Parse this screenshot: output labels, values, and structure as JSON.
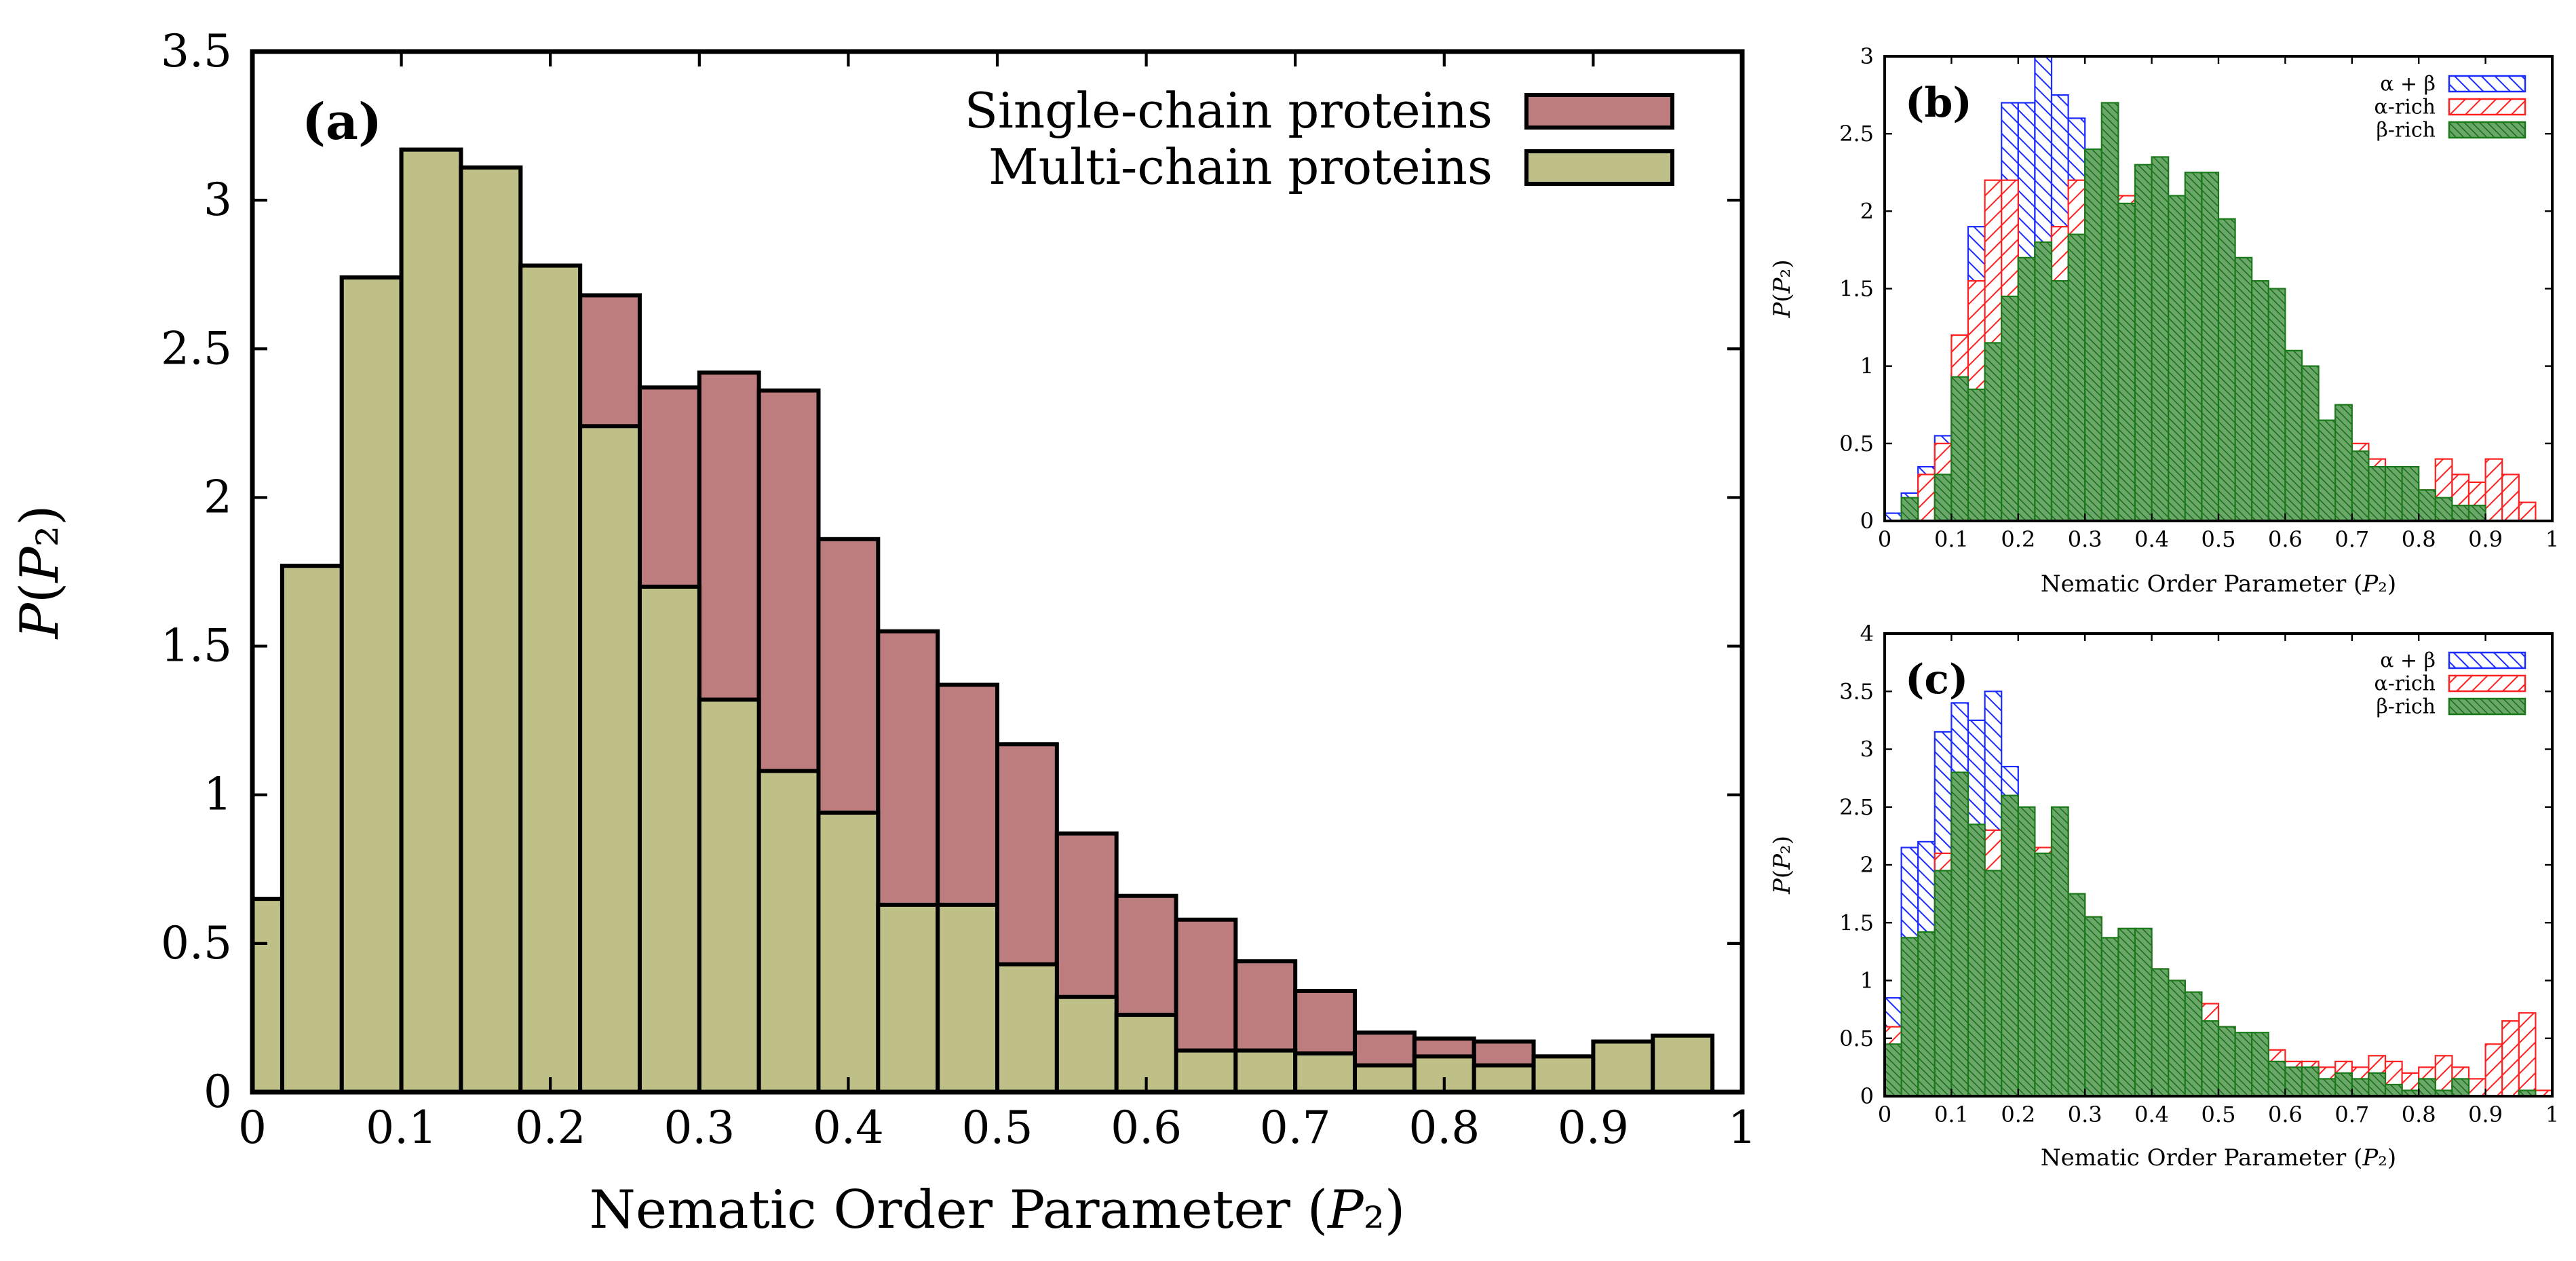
{
  "colors": {
    "single": "#bd7c7d",
    "multi": "#bfbf88",
    "alpha_beta": "#1a2cff",
    "alpha_rich": "#ff2020",
    "beta_rich": "#1a7a1a"
  },
  "chart_data": [
    {
      "panel": "a",
      "type": "bar",
      "title": "",
      "panel_label": "(a)",
      "xlabel": "Nematic Order Parameter (P₂)",
      "ylabel": "P(P₂)",
      "xlim": [
        0,
        1
      ],
      "ylim": [
        0,
        3.5
      ],
      "x_ticks": [
        "0",
        "0.1",
        "0.2",
        "0.3",
        "0.4",
        "0.5",
        "0.6",
        "0.7",
        "0.8",
        "0.9",
        "1"
      ],
      "y_ticks": [
        "0",
        "0.5",
        "1",
        "1.5",
        "2",
        "2.5",
        "3",
        "3.5"
      ],
      "bin_width": 0.04,
      "legend_position": "top-right",
      "series": [
        {
          "name": "Single-chain proteins",
          "color_key": "single",
          "x": [
            0.0,
            0.02,
            0.06,
            0.1,
            0.14,
            0.18,
            0.22,
            0.26,
            0.3,
            0.34,
            0.38,
            0.42,
            0.46,
            0.5,
            0.54,
            0.58,
            0.62,
            0.66,
            0.7,
            0.74,
            0.78,
            0.82,
            0.86,
            0.9,
            0.94
          ],
          "values": [
            0.65,
            1.77,
            2.74,
            3.17,
            3.11,
            2.78,
            2.68,
            2.37,
            2.42,
            2.36,
            1.86,
            1.55,
            1.37,
            1.17,
            0.87,
            0.66,
            0.58,
            0.44,
            0.34,
            0.2,
            0.18,
            0.17,
            0.12,
            0.11,
            0.1
          ]
        },
        {
          "name": "Multi-chain proteins",
          "color_key": "multi",
          "x": [
            0.0,
            0.02,
            0.06,
            0.1,
            0.14,
            0.18,
            0.22,
            0.26,
            0.3,
            0.34,
            0.38,
            0.42,
            0.46,
            0.5,
            0.54,
            0.58,
            0.62,
            0.66,
            0.7,
            0.74,
            0.78,
            0.82,
            0.86,
            0.9,
            0.94
          ],
          "values": [
            0.65,
            1.77,
            2.74,
            3.17,
            3.11,
            2.78,
            2.24,
            1.7,
            1.32,
            1.08,
            0.94,
            0.63,
            0.63,
            0.43,
            0.32,
            0.26,
            0.14,
            0.14,
            0.13,
            0.09,
            0.12,
            0.09,
            0.12,
            0.17,
            0.19
          ]
        }
      ]
    },
    {
      "panel": "b",
      "type": "bar",
      "title": "",
      "panel_label": "(b)",
      "xlabel": "Nematic Order Parameter (P₂)",
      "ylabel": "P(P₂)",
      "xlim": [
        0,
        1
      ],
      "ylim": [
        0,
        3
      ],
      "x_ticks": [
        "0",
        "0.1",
        "0.2",
        "0.3",
        "0.4",
        "0.5",
        "0.6",
        "0.7",
        "0.8",
        "0.9",
        "1"
      ],
      "y_ticks": [
        "0",
        "0.5",
        "1",
        "1.5",
        "2",
        "2.5",
        "3"
      ],
      "bin_width": 0.025,
      "legend_position": "top-right",
      "series": [
        {
          "name": "α + β",
          "color_key": "alpha_beta",
          "x": [
            0.0,
            0.025,
            0.05,
            0.075,
            0.1,
            0.125,
            0.15,
            0.175,
            0.2,
            0.225,
            0.25,
            0.275,
            0.3,
            0.325
          ],
          "values": [
            0.05,
            0.18,
            0.35,
            0.55,
            0.95,
            1.9,
            2.1,
            2.7,
            2.7,
            3.0,
            2.75,
            2.6,
            2.4,
            2.1
          ]
        },
        {
          "name": "α-rich",
          "color_key": "alpha_rich",
          "x": [
            0.0,
            0.025,
            0.05,
            0.075,
            0.1,
            0.125,
            0.15,
            0.175,
            0.2,
            0.225,
            0.25,
            0.275,
            0.3,
            0.325,
            0.35,
            0.375,
            0.4,
            0.425,
            0.45,
            0.475,
            0.5,
            0.525,
            0.55,
            0.575,
            0.6,
            0.625,
            0.65,
            0.675,
            0.7,
            0.725,
            0.75,
            0.775,
            0.8,
            0.825,
            0.85,
            0.875,
            0.9,
            0.925,
            0.95
          ],
          "values": [
            0.0,
            0.1,
            0.3,
            0.5,
            1.2,
            1.55,
            2.2,
            2.2,
            1.5,
            1.25,
            1.9,
            2.2,
            2.2,
            1.65,
            2.1,
            1.75,
            1.3,
            1.6,
            1.3,
            1.1,
            1.05,
            1.0,
            0.8,
            0.65,
            0.5,
            0.45,
            0.55,
            0.4,
            0.5,
            0.4,
            0.35,
            0.25,
            0.2,
            0.4,
            0.3,
            0.25,
            0.4,
            0.3,
            0.12
          ]
        },
        {
          "name": "β-rich",
          "color_key": "beta_rich",
          "x": [
            0.0,
            0.025,
            0.05,
            0.075,
            0.1,
            0.125,
            0.15,
            0.175,
            0.2,
            0.225,
            0.25,
            0.275,
            0.3,
            0.325,
            0.35,
            0.375,
            0.4,
            0.425,
            0.45,
            0.475,
            0.5,
            0.525,
            0.55,
            0.575,
            0.6,
            0.625,
            0.65,
            0.675,
            0.7,
            0.725,
            0.75,
            0.775,
            0.8,
            0.825,
            0.85,
            0.875,
            0.9,
            0.925,
            0.95
          ],
          "values": [
            0.0,
            0.15,
            0.0,
            0.3,
            0.93,
            0.85,
            1.15,
            1.45,
            1.7,
            1.8,
            1.55,
            1.85,
            2.4,
            2.7,
            2.05,
            2.3,
            2.35,
            2.1,
            2.25,
            2.25,
            1.95,
            1.7,
            1.55,
            1.5,
            1.1,
            1.0,
            0.65,
            0.75,
            0.45,
            0.35,
            0.35,
            0.35,
            0.2,
            0.15,
            0.1,
            0.1,
            0.0,
            0.0,
            0.0
          ]
        }
      ]
    },
    {
      "panel": "c",
      "type": "bar",
      "title": "",
      "panel_label": "(c)",
      "xlabel": "Nematic Order Parameter (P₂)",
      "ylabel": "P(P₂)",
      "xlim": [
        0,
        1
      ],
      "ylim": [
        0,
        4
      ],
      "x_ticks": [
        "0",
        "0.1",
        "0.2",
        "0.3",
        "0.4",
        "0.5",
        "0.6",
        "0.7",
        "0.8",
        "0.9",
        "1"
      ],
      "y_ticks": [
        "0",
        "0.5",
        "1",
        "1.5",
        "2",
        "2.5",
        "3",
        "3.5",
        "4"
      ],
      "bin_width": 0.025,
      "legend_position": "top-right",
      "series": [
        {
          "name": "α + β",
          "color_key": "alpha_beta",
          "x": [
            0.0,
            0.025,
            0.05,
            0.075,
            0.1,
            0.125,
            0.15,
            0.175,
            0.2,
            0.225
          ],
          "values": [
            0.85,
            2.15,
            2.2,
            3.15,
            3.4,
            3.25,
            3.5,
            2.85,
            2.4,
            2.0
          ]
        },
        {
          "name": "α-rich",
          "color_key": "alpha_rich",
          "x": [
            0.0,
            0.025,
            0.05,
            0.075,
            0.1,
            0.125,
            0.15,
            0.175,
            0.2,
            0.225,
            0.25,
            0.275,
            0.3,
            0.325,
            0.35,
            0.375,
            0.4,
            0.425,
            0.45,
            0.475,
            0.5,
            0.525,
            0.55,
            0.575,
            0.6,
            0.625,
            0.65,
            0.675,
            0.7,
            0.725,
            0.75,
            0.775,
            0.8,
            0.825,
            0.85,
            0.875,
            0.9,
            0.925,
            0.95,
            0.975
          ],
          "values": [
            0.6,
            0.95,
            1.0,
            2.1,
            2.5,
            2.05,
            2.3,
            1.85,
            2.45,
            2.15,
            2.4,
            1.75,
            1.55,
            1.3,
            1.25,
            1.35,
            1.1,
            1.0,
            0.85,
            0.8,
            0.6,
            0.5,
            0.5,
            0.4,
            0.3,
            0.3,
            0.25,
            0.3,
            0.25,
            0.35,
            0.3,
            0.2,
            0.25,
            0.35,
            0.25,
            0.15,
            0.45,
            0.65,
            0.72,
            0.05
          ]
        },
        {
          "name": "β-rich",
          "color_key": "beta_rich",
          "x": [
            0.0,
            0.025,
            0.05,
            0.075,
            0.1,
            0.125,
            0.15,
            0.175,
            0.2,
            0.225,
            0.25,
            0.275,
            0.3,
            0.325,
            0.35,
            0.375,
            0.4,
            0.425,
            0.45,
            0.475,
            0.5,
            0.525,
            0.55,
            0.575,
            0.6,
            0.625,
            0.65,
            0.675,
            0.7,
            0.725,
            0.75,
            0.775,
            0.8,
            0.825,
            0.85,
            0.875,
            0.9,
            0.925,
            0.95,
            0.975
          ],
          "values": [
            0.45,
            1.37,
            1.42,
            1.95,
            2.8,
            2.35,
            1.95,
            2.6,
            2.5,
            2.1,
            2.5,
            1.75,
            1.55,
            1.37,
            1.45,
            1.45,
            1.1,
            1.0,
            0.9,
            0.65,
            0.6,
            0.55,
            0.55,
            0.3,
            0.25,
            0.25,
            0.15,
            0.2,
            0.15,
            0.2,
            0.1,
            0.05,
            0.15,
            0.05,
            0.15,
            0.0,
            0.0,
            0.0,
            0.05,
            0.0
          ]
        }
      ]
    }
  ]
}
